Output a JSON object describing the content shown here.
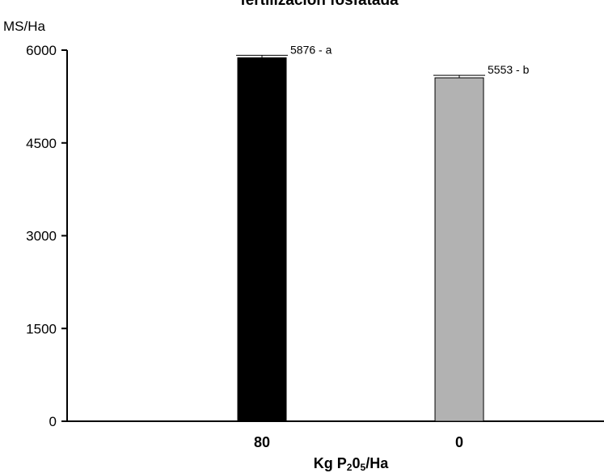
{
  "chart_data": {
    "type": "bar",
    "title": "fertilización fosfatada",
    "ylabel": "MS/Ha",
    "xlabel": {
      "parts": [
        {
          "text": "Kg P",
          "sub": false
        },
        {
          "text": "2",
          "sub": true
        },
        {
          "text": "0",
          "sub": false
        },
        {
          "text": "5",
          "sub": true
        },
        {
          "text": "/Ha",
          "sub": false
        }
      ]
    },
    "categories": [
      "80",
      "0"
    ],
    "values": [
      5876,
      5553
    ],
    "error": [
      40,
      40
    ],
    "data_labels": [
      {
        "value": "5876",
        "sep": " - ",
        "letter": "a"
      },
      {
        "value": "5553",
        "sep": " - ",
        "letter": "b"
      }
    ],
    "colors": [
      "#000000",
      "#b2b2b2"
    ],
    "ylim": [
      0,
      6000
    ],
    "yticks": [
      0,
      1500,
      3000,
      4500,
      6000
    ],
    "grid": false,
    "legend": "none"
  }
}
